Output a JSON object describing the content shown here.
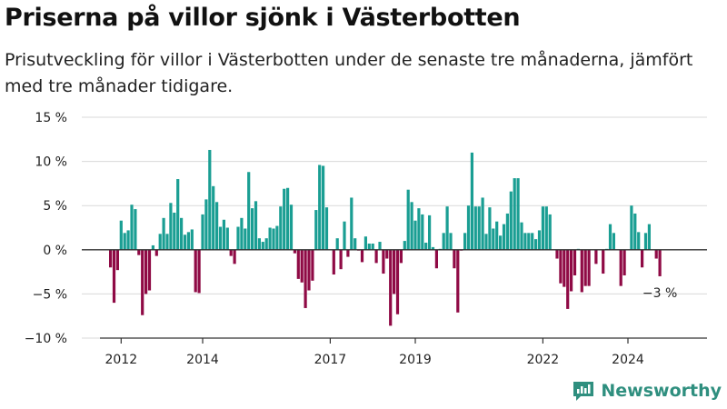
{
  "header": {
    "title": "Priserna på villor sjönk i Västerbotten",
    "subtitle": "Prisutveckling för villor i Västerbotten under de senaste tre månaderna, jämfört med tre månader tidigare."
  },
  "brand": {
    "name": "Newsworthy",
    "color": "#2f8f7f"
  },
  "colors": {
    "positive": "#1a9e93",
    "negative": "#8f0a45",
    "grid": "#d9d9d9",
    "axis": "#333333"
  },
  "chart_data": {
    "type": "bar",
    "title": "Priserna på villor sjönk i Västerbotten",
    "subtitle": "Prisutveckling för villor i Västerbotten under de senaste tre månaderna, jämfört med tre månader tidigare.",
    "unit": "%",
    "ylim": [
      -10,
      15
    ],
    "y_ticks": [
      {
        "value": 15,
        "label": "15 %"
      },
      {
        "value": 10,
        "label": "10 %"
      },
      {
        "value": 5,
        "label": "5 %"
      },
      {
        "value": 0,
        "label": "0 %"
      },
      {
        "value": -5,
        "label": "−5 %"
      },
      {
        "value": -10,
        "label": "−10 %"
      }
    ],
    "x_ticks": [
      {
        "label": "2012",
        "index": 3
      },
      {
        "label": "2014",
        "index": 26
      },
      {
        "label": "2017",
        "index": 62
      },
      {
        "label": "2019",
        "index": 86
      },
      {
        "label": "2022",
        "index": 122
      },
      {
        "label": "2024",
        "index": 146
      }
    ],
    "grid": true,
    "last_label": "−3 %",
    "values": [
      -2,
      -6,
      -2.3,
      3.3,
      1.9,
      2.2,
      5.1,
      4.6,
      -0.6,
      -7.4,
      -5,
      -4.6,
      0.5,
      -0.7,
      1.8,
      3.6,
      1.8,
      5.3,
      4.2,
      8,
      3.6,
      1.7,
      2,
      2.3,
      -4.8,
      -4.9,
      4,
      5.7,
      11.3,
      7.2,
      5.4,
      2.6,
      3.4,
      2.5,
      -0.7,
      -1.6,
      2.6,
      3.6,
      2.4,
      8.8,
      4.7,
      5.5,
      1.3,
      0.9,
      1.3,
      2.5,
      2.4,
      2.7,
      4.9,
      6.9,
      7,
      5.1,
      -0.4,
      -3.3,
      -3.7,
      -6.6,
      -4.6,
      -3.5,
      4.5,
      9.6,
      9.5,
      4.8,
      0,
      -2.8,
      1.3,
      -2.2,
      3.2,
      -0.8,
      5.9,
      1.3,
      -0.1,
      -1.4,
      1.5,
      0.7,
      0.7,
      -1.5,
      0.9,
      -2.7,
      -1,
      -8.6,
      -5,
      -7.3,
      -1.5,
      1,
      6.8,
      5.4,
      3.3,
      4.7,
      4,
      0.8,
      3.9,
      0.3,
      -2.1,
      0.1,
      1.9,
      4.9,
      1.9,
      -2.1,
      -7.1,
      -0.1,
      1.9,
      5,
      11,
      4.9,
      4.9,
      5.9,
      1.8,
      4.8,
      2.4,
      3.2,
      1.6,
      2.9,
      4.1,
      6.6,
      8.1,
      8.1,
      3.1,
      1.9,
      1.9,
      1.9,
      1.2,
      2.2,
      4.9,
      4.9,
      4,
      0,
      -1,
      -3.8,
      -4.2,
      -6.7,
      -4.7,
      -2.9,
      0.1,
      -4.8,
      -4.1,
      -4.1,
      0,
      -1.6,
      0,
      -2.7,
      0.1,
      2.9,
      1.9,
      0,
      -4.1,
      -2.9,
      0,
      5,
      4.1,
      2,
      -2,
      1.9,
      2.9,
      0,
      -1,
      -3
    ]
  }
}
